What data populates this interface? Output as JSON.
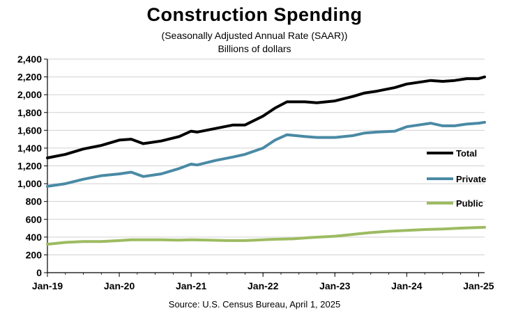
{
  "chart_data": {
    "type": "line",
    "title": "Construction  Spending",
    "subtitle": "(Seasonally Adjusted Annual Rate (SAAR))",
    "subtitle2": "Billions of dollars",
    "source": "Source: U.S. Census Bureau, April 1, 2025",
    "xlabel": "",
    "ylabel": "",
    "ylim": [
      0,
      2400
    ],
    "y_ticks": [
      0,
      200,
      400,
      600,
      800,
      1000,
      1200,
      1400,
      1600,
      1800,
      2000,
      2200,
      2400
    ],
    "y_tick_labels": [
      "0",
      "200",
      "400",
      "600",
      "800",
      "1,000",
      "1,200",
      "1,400",
      "1,600",
      "1,800",
      "2,000",
      "2,200",
      "2,400"
    ],
    "x_tick_labels": [
      "Jan-19",
      "Jan-20",
      "Jan-21",
      "Jan-22",
      "Jan-23",
      "Jan-24",
      "Jan-25"
    ],
    "grid": true,
    "legend": "right",
    "series": [
      {
        "name": "Total",
        "color": "#000000",
        "points": [
          [
            "Jan-19",
            1290
          ],
          [
            "Apr-19",
            1330
          ],
          [
            "Jul-19",
            1390
          ],
          [
            "Oct-19",
            1430
          ],
          [
            "Jan-20",
            1490
          ],
          [
            "Mar-20",
            1500
          ],
          [
            "May-20",
            1450
          ],
          [
            "Aug-20",
            1480
          ],
          [
            "Nov-20",
            1530
          ],
          [
            "Jan-21",
            1590
          ],
          [
            "Feb-21",
            1580
          ],
          [
            "May-21",
            1620
          ],
          [
            "Aug-21",
            1660
          ],
          [
            "Oct-21",
            1660
          ],
          [
            "Jan-22",
            1760
          ],
          [
            "Mar-22",
            1850
          ],
          [
            "May-22",
            1920
          ],
          [
            "Aug-22",
            1920
          ],
          [
            "Oct-22",
            1910
          ],
          [
            "Jan-23",
            1930
          ],
          [
            "Apr-23",
            1980
          ],
          [
            "Jun-23",
            2020
          ],
          [
            "Aug-23",
            2040
          ],
          [
            "Nov-23",
            2080
          ],
          [
            "Jan-24",
            2120
          ],
          [
            "Mar-24",
            2140
          ],
          [
            "May-24",
            2160
          ],
          [
            "Jul-24",
            2150
          ],
          [
            "Sep-24",
            2160
          ],
          [
            "Nov-24",
            2180
          ],
          [
            "Jan-25",
            2180
          ],
          [
            "Feb-25",
            2200
          ]
        ]
      },
      {
        "name": "Private",
        "color": "#4a8aa5",
        "points": [
          [
            "Jan-19",
            970
          ],
          [
            "Apr-19",
            1000
          ],
          [
            "Jul-19",
            1050
          ],
          [
            "Oct-19",
            1090
          ],
          [
            "Jan-20",
            1110
          ],
          [
            "Mar-20",
            1130
          ],
          [
            "May-20",
            1080
          ],
          [
            "Aug-20",
            1110
          ],
          [
            "Nov-20",
            1170
          ],
          [
            "Jan-21",
            1220
          ],
          [
            "Feb-21",
            1210
          ],
          [
            "May-21",
            1260
          ],
          [
            "Aug-21",
            1300
          ],
          [
            "Oct-21",
            1330
          ],
          [
            "Jan-22",
            1400
          ],
          [
            "Mar-22",
            1490
          ],
          [
            "May-22",
            1550
          ],
          [
            "Aug-22",
            1530
          ],
          [
            "Oct-22",
            1520
          ],
          [
            "Jan-23",
            1520
          ],
          [
            "Apr-23",
            1540
          ],
          [
            "Jun-23",
            1570
          ],
          [
            "Aug-23",
            1580
          ],
          [
            "Nov-23",
            1590
          ],
          [
            "Jan-24",
            1640
          ],
          [
            "Mar-24",
            1660
          ],
          [
            "May-24",
            1680
          ],
          [
            "Jul-24",
            1650
          ],
          [
            "Sep-24",
            1650
          ],
          [
            "Nov-24",
            1670
          ],
          [
            "Jan-25",
            1680
          ],
          [
            "Feb-25",
            1690
          ]
        ]
      },
      {
        "name": "Public",
        "color": "#9dbb61",
        "points": [
          [
            "Jan-19",
            320
          ],
          [
            "Apr-19",
            340
          ],
          [
            "Jul-19",
            350
          ],
          [
            "Oct-19",
            350
          ],
          [
            "Jan-20",
            360
          ],
          [
            "Mar-20",
            370
          ],
          [
            "May-20",
            370
          ],
          [
            "Aug-20",
            370
          ],
          [
            "Nov-20",
            365
          ],
          [
            "Jan-21",
            370
          ],
          [
            "Apr-21",
            365
          ],
          [
            "Jul-21",
            360
          ],
          [
            "Oct-21",
            360
          ],
          [
            "Jan-22",
            370
          ],
          [
            "Mar-22",
            375
          ],
          [
            "Jun-22",
            380
          ],
          [
            "Sep-22",
            395
          ],
          [
            "Jan-23",
            410
          ],
          [
            "Apr-23",
            430
          ],
          [
            "Jul-23",
            450
          ],
          [
            "Oct-23",
            465
          ],
          [
            "Jan-24",
            475
          ],
          [
            "Apr-24",
            485
          ],
          [
            "Jul-24",
            490
          ],
          [
            "Oct-24",
            500
          ],
          [
            "Dec-24",
            505
          ],
          [
            "Feb-25",
            510
          ]
        ]
      }
    ]
  }
}
